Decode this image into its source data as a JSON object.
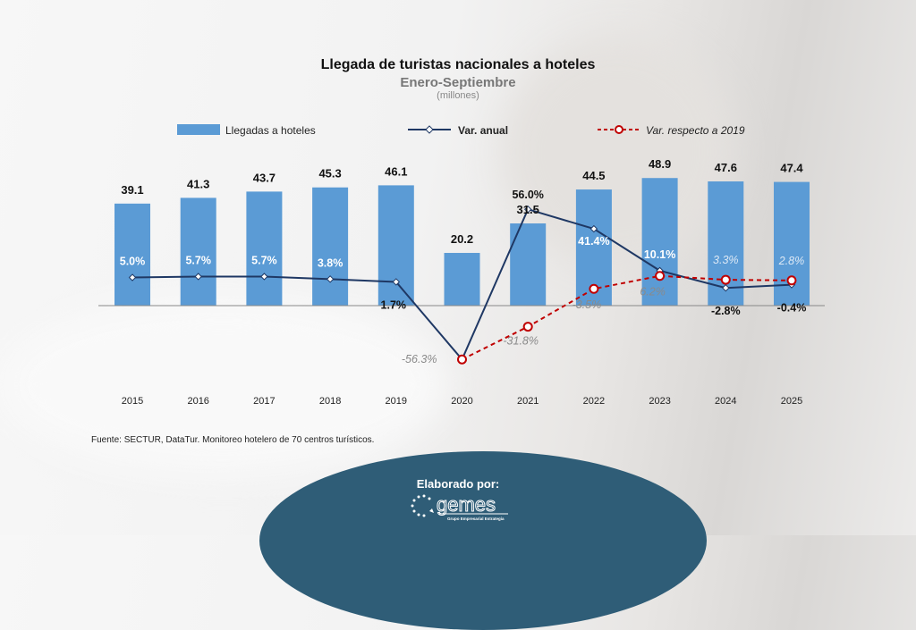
{
  "title": "Llegada de turistas nacionales a hoteles",
  "subtitle": "Enero-Septiembre",
  "unit": "(millones)",
  "source": "Fuente: SECTUR, DataTur. Monitoreo hotelero de 70 centros turísticos.",
  "footer": {
    "label": "Elaborado por:",
    "logo_text": "gemes",
    "logo_tagline": "Grupo Empresarial Estrategia"
  },
  "colors": {
    "bar": "#5b9bd5",
    "var_anual": "#1f3864",
    "var_2019": "#c00000",
    "footer_bg": "#2f5d77"
  },
  "chart_data": {
    "type": "bar",
    "title": "Llegada de turistas nacionales a hoteles",
    "subtitle": "Enero-Septiembre",
    "ylabel": "(millones)",
    "legend_position": "top",
    "grid": false,
    "categories": [
      "2015",
      "2016",
      "2017",
      "2018",
      "2019",
      "2020",
      "2021",
      "2022",
      "2023",
      "2024",
      "2025"
    ],
    "series": [
      {
        "name": "Llegadas a hoteles",
        "type": "bar",
        "values": [
          39.1,
          41.3,
          43.7,
          45.3,
          46.1,
          20.2,
          31.5,
          44.5,
          48.9,
          47.6,
          47.4
        ],
        "labels": [
          "39.1",
          "41.3",
          "43.7",
          "45.3",
          "46.1",
          "20.2",
          "31.5",
          "44.5",
          "48.9",
          "47.6",
          "47.4"
        ]
      },
      {
        "name": "Var. anual",
        "type": "line",
        "values": [
          5.0,
          5.7,
          5.7,
          3.8,
          1.7,
          -56.3,
          56.0,
          41.4,
          10.1,
          -2.8,
          -0.4
        ],
        "labels": [
          "5.0%",
          "5.7%",
          "5.7%",
          "3.8%",
          "1.7%",
          "",
          "56.0%",
          "41.4%",
          "10.1%",
          "-2.8%",
          "-0.4%"
        ]
      },
      {
        "name": "Var. respecto a 2019",
        "type": "line",
        "values": [
          null,
          null,
          null,
          null,
          null,
          -56.3,
          -31.8,
          -3.5,
          6.2,
          3.3,
          2.8
        ],
        "labels": [
          "",
          "",
          "",
          "",
          "",
          "-56.3%",
          "-31.8%",
          "-3.5%",
          "6.2%",
          "3.3%",
          "2.8%"
        ]
      }
    ]
  }
}
